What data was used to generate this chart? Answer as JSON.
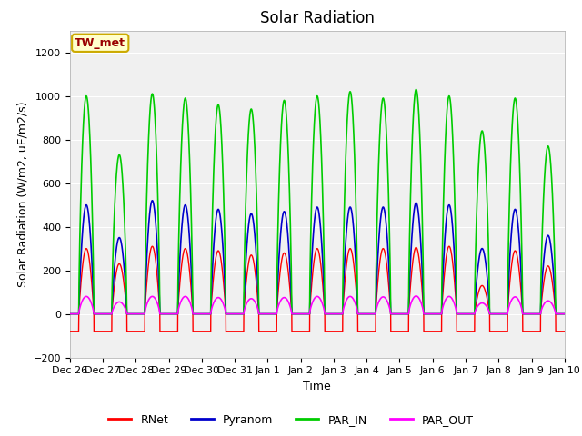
{
  "title": "Solar Radiation",
  "ylabel": "Solar Radiation (W/m2, uE/m2/s)",
  "xlabel": "Time",
  "ylim": [
    -200,
    1300
  ],
  "yticks": [
    -200,
    0,
    200,
    400,
    600,
    800,
    1000,
    1200
  ],
  "x_tick_labels": [
    "Dec 26",
    "Dec 27",
    "Dec 28",
    "Dec 29",
    "Dec 30",
    "Dec 31",
    "Jan 1",
    "Jan 2",
    "Jan 3",
    "Jan 4",
    "Jan 5",
    "Jan 6",
    "Jan 7",
    "Jan 8",
    "Jan 9",
    "Jan 10"
  ],
  "colors": {
    "RNet": "#ff0000",
    "Pyranom": "#0000cc",
    "PAR_IN": "#00cc00",
    "PAR_OUT": "#ff00ff"
  },
  "station_label": "TW_met",
  "station_label_color": "#990000",
  "station_box_facecolor": "#ffffcc",
  "station_box_edgecolor": "#ccaa00",
  "fig_facecolor": "#ffffff",
  "plot_facecolor": "#f0f0f0",
  "title_fontsize": 12,
  "axis_label_fontsize": 9,
  "tick_fontsize": 8,
  "legend_fontsize": 9,
  "num_days": 15,
  "par_in_peaks": [
    1000,
    730,
    1010,
    990,
    960,
    940,
    980,
    1000,
    1020,
    990,
    1030,
    1000,
    840,
    990,
    770
  ],
  "pyranom_peaks": [
    500,
    350,
    520,
    500,
    480,
    460,
    470,
    490,
    490,
    490,
    510,
    500,
    300,
    480,
    360
  ],
  "rnet_peaks": [
    300,
    230,
    310,
    300,
    290,
    270,
    280,
    300,
    300,
    300,
    305,
    310,
    130,
    290,
    220
  ],
  "par_out_peaks": [
    80,
    55,
    80,
    80,
    75,
    70,
    75,
    80,
    80,
    78,
    82,
    80,
    50,
    78,
    60
  ],
  "rnet_night": -80,
  "sunrise_hour": 6.5,
  "sunset_hour": 17.5
}
